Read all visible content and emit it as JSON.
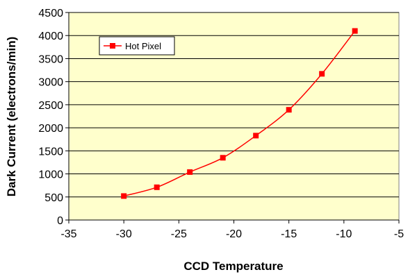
{
  "chart_data": {
    "type": "line",
    "xlabel": "CCD Temperature",
    "ylabel": "Dark Current (electrons/min)",
    "xlim": [
      -35,
      -5
    ],
    "ylim": [
      0,
      4500
    ],
    "x_ticks": [
      -35,
      -30,
      -25,
      -20,
      -15,
      -10,
      -5
    ],
    "y_ticks": [
      0,
      500,
      1000,
      1500,
      2000,
      2500,
      3000,
      3500,
      4000,
      4500
    ],
    "grid": "horizontal",
    "legend": "top-left",
    "plot_background": "#FFFFCC",
    "series": [
      {
        "name": "Hot Pixel",
        "color": "#FF0000",
        "marker": "square",
        "x": [
          -30,
          -27,
          -24,
          -21,
          -18,
          -15,
          -12,
          -9
        ],
        "y": [
          520,
          710,
          1040,
          1350,
          1830,
          2390,
          3170,
          4100
        ]
      }
    ]
  }
}
